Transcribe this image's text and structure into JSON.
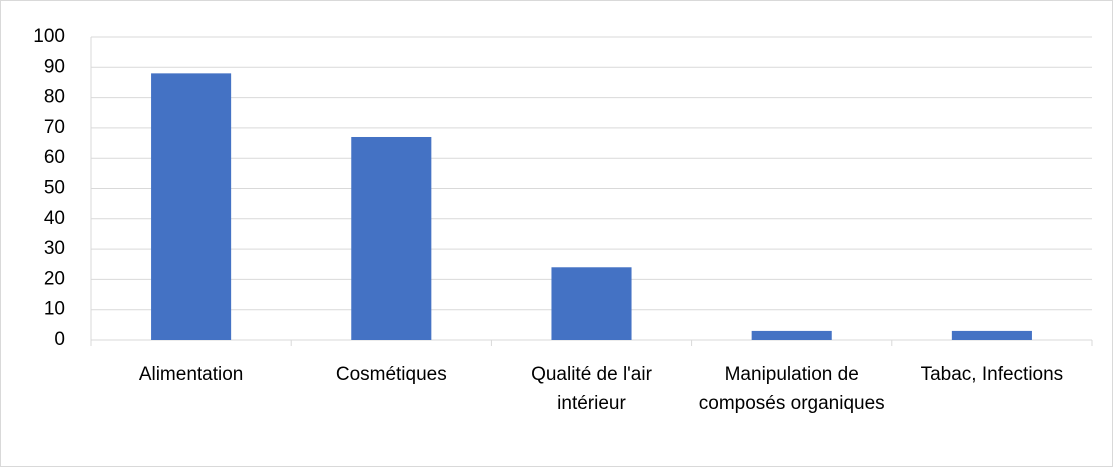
{
  "chart_data": {
    "type": "bar",
    "categories": [
      "Alimentation",
      "Cosmétiques",
      "Qualité de l'air intérieur",
      "Manipulation de composés organiques",
      "Tabac, Infections"
    ],
    "values": [
      88,
      67,
      24,
      3,
      3
    ],
    "color": "#4472c4",
    "ylim": [
      0,
      100
    ],
    "yticks": [
      0,
      10,
      20,
      30,
      40,
      50,
      60,
      70,
      80,
      90,
      100
    ],
    "grid": true
  }
}
